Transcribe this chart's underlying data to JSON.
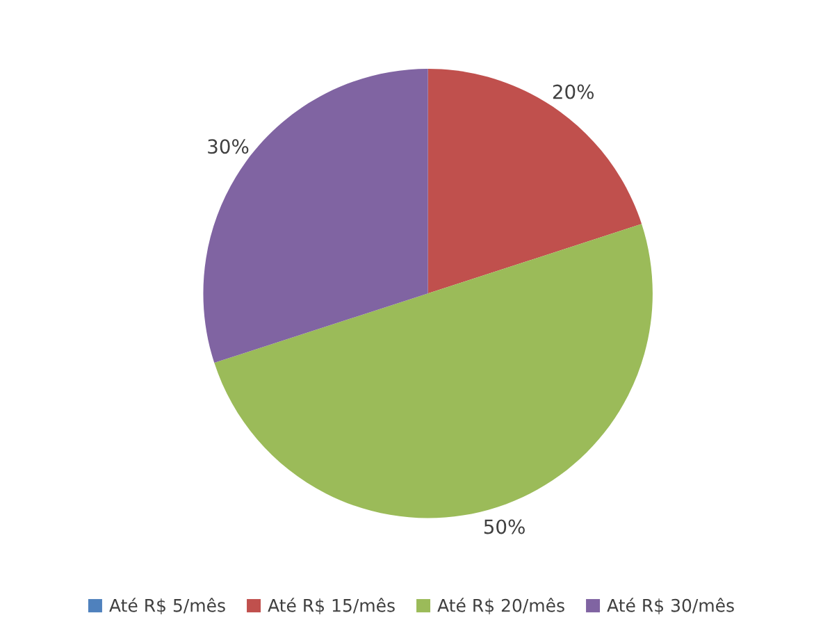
{
  "chart_data": {
    "type": "pie",
    "categories": [
      "Até R$ 5/mês",
      "Até R$ 15/mês",
      "Até R$ 20/mês",
      "Até R$ 30/mês"
    ],
    "values": [
      0,
      20,
      50,
      30
    ],
    "colors": [
      "#4f81bd",
      "#c0504d",
      "#9bbb59",
      "#8064a2"
    ],
    "value_labels": [
      null,
      "20%",
      "50%",
      "30%"
    ],
    "legend": "bottom"
  }
}
